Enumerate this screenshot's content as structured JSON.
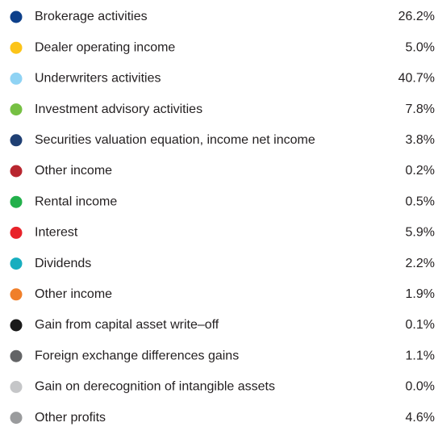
{
  "items": [
    {
      "label": "Brokerage activities",
      "value": "26.2%",
      "color": "#0d3f8a"
    },
    {
      "label": "Dealer operating income",
      "value": "5.0%",
      "color": "#fcc419"
    },
    {
      "label": "Underwriters activities",
      "value": "40.7%",
      "color": "#8fd3f4"
    },
    {
      "label": "Investment advisory activities",
      "value": "7.8%",
      "color": "#76c043"
    },
    {
      "label": "Securities valuation equation, income net income",
      "value": "3.8%",
      "color": "#1f3f73"
    },
    {
      "label": "Other income",
      "value": "0.2%",
      "color": "#b8262f"
    },
    {
      "label": "Rental income",
      "value": "0.5%",
      "color": "#22b04b"
    },
    {
      "label": "Interest",
      "value": "5.9%",
      "color": "#e8232a"
    },
    {
      "label": "Dividends",
      "value": "2.2%",
      "color": "#17aebf"
    },
    {
      "label": "Other income",
      "value": "1.9%",
      "color": "#f07f2a"
    },
    {
      "label": "Gain from capital asset write–off",
      "value": "0.1%",
      "color": "#1a1a1a"
    },
    {
      "label": "Foreign exchange differences gains",
      "value": "1.1%",
      "color": "#636466"
    },
    {
      "label": "Gain on derecognition of intangible assets",
      "value": "0.0%",
      "color": "#c5c6c8"
    },
    {
      "label": "Other profits",
      "value": "4.6%",
      "color": "#9a9b9d"
    }
  ]
}
